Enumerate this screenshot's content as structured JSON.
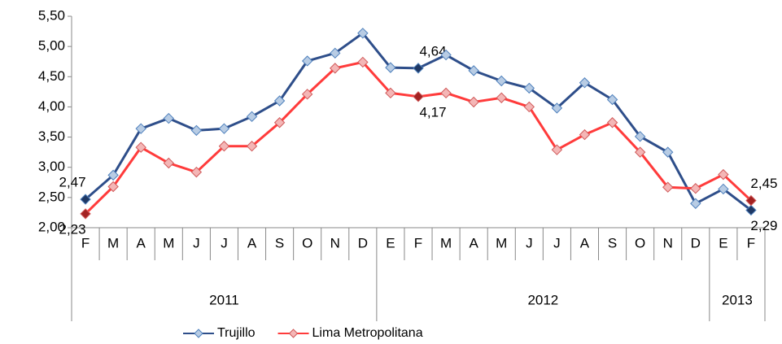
{
  "chart_data": {
    "type": "line",
    "groups": [
      {
        "label": "2011",
        "categories": [
          "F",
          "M",
          "A",
          "M",
          "J",
          "J",
          "A",
          "S",
          "O",
          "N",
          "D"
        ]
      },
      {
        "label": "2012",
        "categories": [
          "E",
          "F",
          "M",
          "A",
          "M",
          "J",
          "J",
          "A",
          "S",
          "O",
          "N",
          "D"
        ]
      },
      {
        "label": "2013",
        "categories": [
          "E",
          "F"
        ]
      }
    ],
    "series": [
      {
        "name": "Trujillo",
        "color": "#2e4e8a",
        "marker_fill": "#b8cce4",
        "marker_stroke": "#4f81bd",
        "highlight_fill": "#1f3864",
        "values": [
          2.47,
          2.87,
          3.64,
          3.81,
          3.61,
          3.64,
          3.84,
          4.1,
          4.76,
          4.89,
          5.22,
          4.65,
          4.64,
          4.86,
          4.6,
          4.43,
          4.31,
          3.98,
          4.4,
          4.12,
          3.51,
          3.25,
          2.4,
          2.64,
          2.29
        ],
        "value_labels": [
          "2,47",
          null,
          null,
          null,
          null,
          null,
          null,
          null,
          null,
          null,
          null,
          null,
          "4,64",
          null,
          null,
          null,
          null,
          null,
          null,
          null,
          null,
          null,
          null,
          null,
          "2,29"
        ]
      },
      {
        "name": "Lima Metropolitana",
        "color": "#ff3b3b",
        "marker_fill": "#f4b6b6",
        "marker_stroke": "#d05a5a",
        "highlight_fill": "#a32222",
        "values": [
          2.23,
          2.68,
          3.33,
          3.07,
          2.92,
          3.35,
          3.35,
          3.74,
          4.21,
          4.64,
          4.74,
          4.23,
          4.17,
          4.23,
          4.08,
          4.15,
          4.0,
          3.29,
          3.54,
          3.74,
          3.25,
          2.67,
          2.65,
          2.88,
          2.45
        ],
        "value_labels": [
          "2,23",
          null,
          null,
          null,
          null,
          null,
          null,
          null,
          null,
          null,
          null,
          null,
          "4,17",
          null,
          null,
          null,
          null,
          null,
          null,
          null,
          null,
          null,
          null,
          null,
          "2,45"
        ]
      }
    ],
    "ylim": [
      2.0,
      5.5
    ],
    "yticks": [
      {
        "value": 2.0,
        "label": "2,00"
      },
      {
        "value": 2.5,
        "label": "2,50"
      },
      {
        "value": 3.0,
        "label": "3,00"
      },
      {
        "value": 3.5,
        "label": "3,50"
      },
      {
        "value": 4.0,
        "label": "4,00"
      },
      {
        "value": 4.5,
        "label": "4,50"
      },
      {
        "value": 5.0,
        "label": "5,00"
      },
      {
        "value": 5.5,
        "label": "5,50"
      }
    ],
    "legend": "bottom"
  }
}
